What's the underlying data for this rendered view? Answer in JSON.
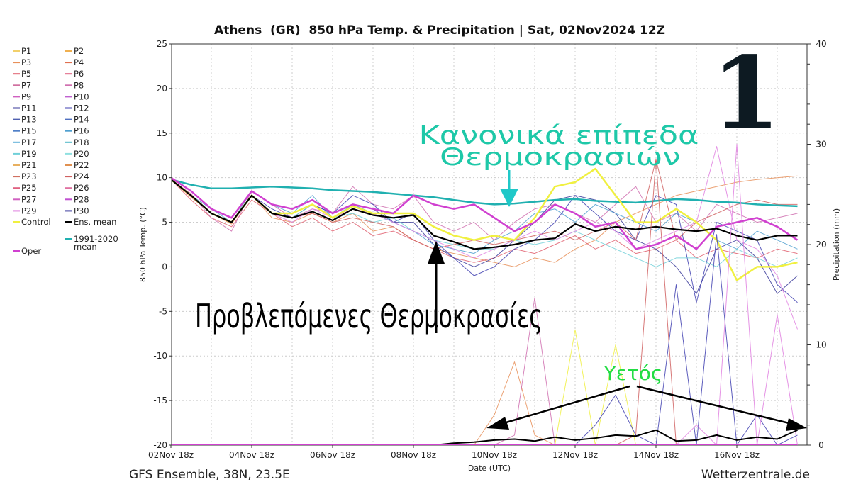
{
  "chart_data": {
    "type": "line",
    "title": "Athens  (GR)  850 hPa Temp. & Precipitation | Sat, 02Nov2024 12Z",
    "xlabel": "Date (UTC)",
    "ylabel": "850 hPa Temp. (°C)",
    "y2label": "Precipitation (mm)",
    "ylim": [
      -20,
      25
    ],
    "y2lim": [
      0,
      40
    ],
    "yticks": [
      "25",
      "20",
      "15",
      "10",
      "5",
      "0",
      "-5",
      "-10",
      "-15",
      "-20"
    ],
    "y2ticks": [
      "40",
      "30",
      "20",
      "10",
      "0"
    ],
    "xticks": [
      "02Nov 18z",
      "04Nov 18z",
      "06Nov 18z",
      "08Nov 18z",
      "10Nov 18z",
      "12Nov 18z",
      "14Nov 18z",
      "16Nov 18z"
    ],
    "grid": true,
    "legend_placement": "left outside",
    "x": [
      "2024-11-02 18z",
      "2024-11-03 06z",
      "2024-11-03 18z",
      "2024-11-04 06z",
      "2024-11-04 18z",
      "2024-11-05 06z",
      "2024-11-05 18z",
      "2024-11-06 06z",
      "2024-11-06 18z",
      "2024-11-07 06z",
      "2024-11-07 18z",
      "2024-11-08 06z",
      "2024-11-08 18z",
      "2024-11-09 06z",
      "2024-11-09 18z",
      "2024-11-10 06z",
      "2024-11-10 18z",
      "2024-11-11 06z",
      "2024-11-11 18z",
      "2024-11-12 06z",
      "2024-11-12 18z",
      "2024-11-13 06z",
      "2024-11-13 18z",
      "2024-11-14 06z",
      "2024-11-14 18z",
      "2024-11-15 06z",
      "2024-11-15 18z",
      "2024-11-16 06z",
      "2024-11-16 18z",
      "2024-11-17 06z",
      "2024-11-17 18z",
      "2024-11-18 06z"
    ],
    "legend": [
      {
        "name": "P1",
        "color": "#f2d06b"
      },
      {
        "name": "P2",
        "color": "#f0b050"
      },
      {
        "name": "P3",
        "color": "#e8905a"
      },
      {
        "name": "P4",
        "color": "#e07050"
      },
      {
        "name": "P5",
        "color": "#e06070"
      },
      {
        "name": "P6",
        "color": "#e06080"
      },
      {
        "name": "P7",
        "color": "#d070a0"
      },
      {
        "name": "P8",
        "color": "#d070b0"
      },
      {
        "name": "P9",
        "color": "#d060c0"
      },
      {
        "name": "P10",
        "color": "#c060d0"
      },
      {
        "name": "P11",
        "color": "#3a3a9a"
      },
      {
        "name": "P12",
        "color": "#4040b0"
      },
      {
        "name": "P13",
        "color": "#5060b0"
      },
      {
        "name": "P14",
        "color": "#5070c0"
      },
      {
        "name": "P15",
        "color": "#5080c8"
      },
      {
        "name": "P16",
        "color": "#50a0d0"
      },
      {
        "name": "P17",
        "color": "#60b0d8"
      },
      {
        "name": "P18",
        "color": "#50b8c8"
      },
      {
        "name": "P19",
        "color": "#70d0d8"
      },
      {
        "name": "P20",
        "color": "#90e0e0"
      },
      {
        "name": "P21",
        "color": "#e8b060"
      },
      {
        "name": "P22",
        "color": "#e09050"
      },
      {
        "name": "P23",
        "color": "#d07060"
      },
      {
        "name": "P24",
        "color": "#d06060"
      },
      {
        "name": "P25",
        "color": "#e06080"
      },
      {
        "name": "P26",
        "color": "#e070a0"
      },
      {
        "name": "P27",
        "color": "#d060c0"
      },
      {
        "name": "P28",
        "color": "#c050d0"
      },
      {
        "name": "P29",
        "color": "#e080e0"
      },
      {
        "name": "P30",
        "color": "#4040a0"
      },
      {
        "name": "Control",
        "color": "#f0f040"
      },
      {
        "name": "Ens. mean",
        "color": "#000000"
      },
      {
        "name": "1991-2020 mean",
        "color": "#20b0b0"
      },
      {
        "name": "Oper",
        "color": "#d040d0"
      }
    ],
    "temperature_series": [
      {
        "name": "P3",
        "color": "#e8905a",
        "width": 1,
        "values": [
          9.8,
          7.8,
          6,
          4.8,
          8,
          5.5,
          5,
          6,
          5,
          6,
          4,
          4.5,
          3,
          2,
          1.5,
          1,
          0.5,
          0,
          1,
          0.5,
          2,
          3,
          5,
          6,
          7,
          8,
          8.5,
          9,
          9.5,
          9.8,
          10,
          10.2
        ]
      },
      {
        "name": "P5",
        "color": "#e06070",
        "width": 1,
        "values": [
          9.8,
          7.5,
          5.5,
          4.5,
          7.5,
          6,
          4.5,
          5.5,
          4,
          5,
          3.5,
          4,
          3,
          2,
          1,
          0.5,
          1,
          2,
          1.5,
          2.5,
          3.5,
          2,
          3,
          1.5,
          2,
          3,
          1,
          2,
          1.5,
          1,
          2,
          1.5
        ]
      },
      {
        "name": "P8",
        "color": "#d070b0",
        "width": 1,
        "values": [
          9.8,
          8.2,
          5.5,
          4,
          8.5,
          7,
          5.5,
          6.5,
          6,
          9,
          7,
          6.5,
          8,
          5,
          4,
          5,
          3,
          5,
          6.5,
          7,
          6,
          5,
          7,
          9,
          5,
          6,
          4,
          7,
          6,
          5,
          5.5,
          6
        ]
      },
      {
        "name": "P11",
        "color": "#3a3a9a",
        "width": 1,
        "values": [
          9.8,
          8,
          6,
          5,
          8,
          6,
          6,
          7,
          6,
          7,
          6.5,
          5,
          5,
          2.5,
          1,
          0,
          1,
          3,
          5,
          7.5,
          8,
          7.5,
          6,
          3,
          2,
          0,
          -3,
          2,
          3,
          1,
          -3,
          -1
        ]
      },
      {
        "name": "P12",
        "color": "#4040b0",
        "width": 1,
        "values": [
          9.8,
          8,
          6,
          5,
          8,
          6.5,
          5.5,
          7,
          6,
          8,
          7,
          5,
          6,
          3,
          1,
          -1,
          0,
          2,
          3,
          5,
          8,
          6,
          4,
          3,
          8,
          7,
          -4,
          5,
          4,
          3,
          -2,
          -4
        ]
      },
      {
        "name": "P16",
        "color": "#50a0d0",
        "width": 1,
        "values": [
          9.8,
          8,
          6.5,
          5,
          8.5,
          7,
          6,
          8,
          5.5,
          7,
          6,
          5,
          4,
          2.5,
          2,
          1.5,
          3,
          4,
          6,
          6.5,
          5,
          7,
          6,
          5,
          4,
          6,
          5,
          3,
          2,
          4,
          3,
          2
        ]
      },
      {
        "name": "P19",
        "color": "#70d0d8",
        "width": 1,
        "values": [
          9.8,
          8,
          6,
          5,
          8,
          6,
          5.5,
          7,
          5.5,
          6,
          5,
          5.5,
          4,
          3,
          2.5,
          2,
          2,
          3,
          2.5,
          3,
          4,
          3,
          2,
          1,
          0,
          1,
          1,
          0,
          2,
          1,
          0,
          1
        ]
      },
      {
        "name": "P24",
        "color": "#d06060",
        "width": 1,
        "values": [
          9.8,
          8,
          6,
          5,
          8,
          6,
          5.5,
          6,
          5,
          5.5,
          5,
          4.5,
          3,
          2,
          2.5,
          3,
          2.5,
          3,
          3.5,
          4,
          3,
          4,
          5,
          3,
          12,
          3,
          5,
          6,
          7,
          7.5,
          7,
          7
        ]
      },
      {
        "name": "P29",
        "color": "#e080e0",
        "width": 1,
        "values": [
          9.8,
          8,
          6,
          5,
          8,
          6,
          5,
          6.5,
          5.5,
          6.5,
          6,
          5,
          4,
          3,
          2,
          1,
          2,
          3,
          4,
          3,
          4,
          5,
          4,
          2,
          3,
          4,
          5,
          13.5,
          3,
          2,
          -1,
          -7
        ]
      },
      {
        "name": "1991-2020 mean",
        "color": "#20b0b0",
        "width": 2.5,
        "values": [
          9.8,
          9.2,
          8.8,
          8.8,
          8.9,
          9.0,
          8.9,
          8.8,
          8.6,
          8.5,
          8.4,
          8.2,
          8.0,
          7.8,
          7.5,
          7.2,
          7.0,
          7.1,
          7.3,
          7.5,
          7.6,
          7.4,
          7.3,
          7.2,
          7.4,
          7.6,
          7.5,
          7.3,
          7.2,
          7.0,
          6.9,
          6.8
        ]
      },
      {
        "name": "Control",
        "color": "#f0f040",
        "width": 2.5,
        "values": [
          9.8,
          8,
          6,
          5,
          8,
          6,
          6,
          7,
          5.5,
          6.8,
          6,
          6,
          6,
          4.5,
          3.5,
          3,
          3.5,
          3,
          5.5,
          9,
          9.5,
          11,
          8,
          5,
          5,
          6.5,
          5,
          3,
          -1.5,
          0,
          0,
          0.5
        ]
      },
      {
        "name": "Oper",
        "color": "#d040d0",
        "width": 2.5,
        "values": [
          10,
          8.5,
          6.5,
          5.5,
          8.5,
          7,
          6.5,
          7.5,
          6,
          7,
          6.5,
          6,
          8,
          7,
          6.5,
          7,
          5.5,
          4,
          5,
          7,
          6,
          4.5,
          5,
          2,
          2.5,
          3.5,
          2,
          4.5,
          5,
          5.5,
          4.5,
          3
        ]
      },
      {
        "name": "Ens. mean",
        "color": "#000000",
        "width": 2.2,
        "values": [
          9.8,
          8,
          6,
          5,
          8,
          6,
          5.5,
          6.2,
          5.2,
          6.5,
          5.8,
          5.5,
          5.8,
          3.5,
          2.8,
          2.0,
          2.2,
          2.5,
          3.0,
          3.2,
          4.8,
          4.0,
          4.5,
          4.2,
          4.5,
          4.2,
          4.0,
          4.3,
          3.5,
          3.0,
          3.5,
          3.5
        ]
      }
    ],
    "precipitation_series": [
      {
        "name": "P3",
        "color": "#e8905a",
        "width": 1,
        "values": [
          0,
          0,
          0,
          0,
          0,
          0,
          0,
          0,
          0,
          0,
          0,
          0,
          0,
          0,
          0,
          0,
          3,
          8.3,
          1,
          0,
          0,
          0,
          0,
          0,
          0,
          0,
          0,
          0,
          0,
          0,
          0,
          0
        ]
      },
      {
        "name": "P8",
        "color": "#d070b0",
        "width": 1,
        "values": [
          0,
          0,
          0,
          0,
          0,
          0,
          0,
          0,
          0,
          0,
          0,
          0,
          0,
          0,
          0,
          0,
          0,
          1,
          14.7,
          0,
          0,
          0,
          0,
          0,
          0,
          0,
          0,
          0,
          0,
          0,
          0,
          0
        ]
      },
      {
        "name": "Control",
        "color": "#f0f040",
        "width": 1,
        "values": [
          0,
          0,
          0,
          0,
          0,
          0,
          0,
          0,
          0,
          0,
          0,
          0,
          0,
          0,
          0,
          0,
          0,
          0,
          0,
          0,
          11.5,
          0,
          10,
          0,
          0,
          0,
          0,
          0,
          0,
          0,
          0,
          0
        ]
      },
      {
        "name": "P24",
        "color": "#d06060",
        "width": 1,
        "values": [
          0,
          0,
          0,
          0,
          0,
          0,
          0,
          0,
          0,
          0,
          0,
          0,
          0,
          0,
          0,
          0,
          0,
          0,
          0,
          0,
          0,
          0,
          0,
          1,
          28.5,
          0,
          0,
          0,
          0,
          0,
          0,
          0
        ]
      },
      {
        "name": "P12",
        "color": "#4040b0",
        "width": 1,
        "values": [
          0,
          0,
          0,
          0,
          0,
          0,
          0,
          0,
          0,
          0,
          0,
          0,
          0,
          0,
          0,
          0,
          0,
          0,
          0,
          0,
          0,
          2,
          5,
          1,
          0,
          16,
          0,
          21,
          0,
          3,
          0,
          1
        ]
      },
      {
        "name": "P29",
        "color": "#e080e0",
        "width": 1,
        "values": [
          0,
          0,
          0,
          0,
          0,
          0,
          0,
          0,
          0,
          0,
          0,
          0,
          0,
          0,
          0,
          0,
          0,
          0,
          0,
          0,
          0,
          0,
          0,
          0,
          0,
          0,
          2,
          0,
          30,
          0,
          13,
          0
        ]
      },
      {
        "name": "Ens. mean",
        "color": "#000000",
        "width": 2,
        "values": [
          0,
          0,
          0,
          0,
          0,
          0,
          0,
          0,
          0,
          0,
          0,
          0,
          0,
          0,
          0.2,
          0.3,
          0.5,
          0.6,
          0.4,
          0.8,
          0.5,
          0.7,
          1.0,
          0.9,
          1.5,
          0.4,
          0.5,
          1.0,
          0.5,
          0.8,
          0.6,
          1.5
        ]
      },
      {
        "name": "Oper",
        "color": "#d040d0",
        "width": 3,
        "values": [
          0,
          0,
          0,
          0,
          0,
          0,
          0,
          0,
          0,
          0,
          0,
          0,
          0,
          0,
          0,
          0,
          0,
          0,
          0,
          0,
          0,
          0,
          0,
          0,
          0,
          0,
          0,
          0,
          0,
          0,
          0,
          0
        ]
      }
    ],
    "annotations": {
      "normal_levels_line1": "Κανονικά επίπεδα",
      "normal_levels_line2": "Θερμοκρασιών",
      "forecast_temps": "Προβλεπόμενες Θερμοκρασίες",
      "precipitation": "Υετός",
      "number": "1",
      "normal_color": "#1ec8a8",
      "precip_color": "#22dd44"
    },
    "footer_left": "GFS Ensemble, 38N, 23.5E",
    "footer_right": "Wetterzentrale.de"
  }
}
